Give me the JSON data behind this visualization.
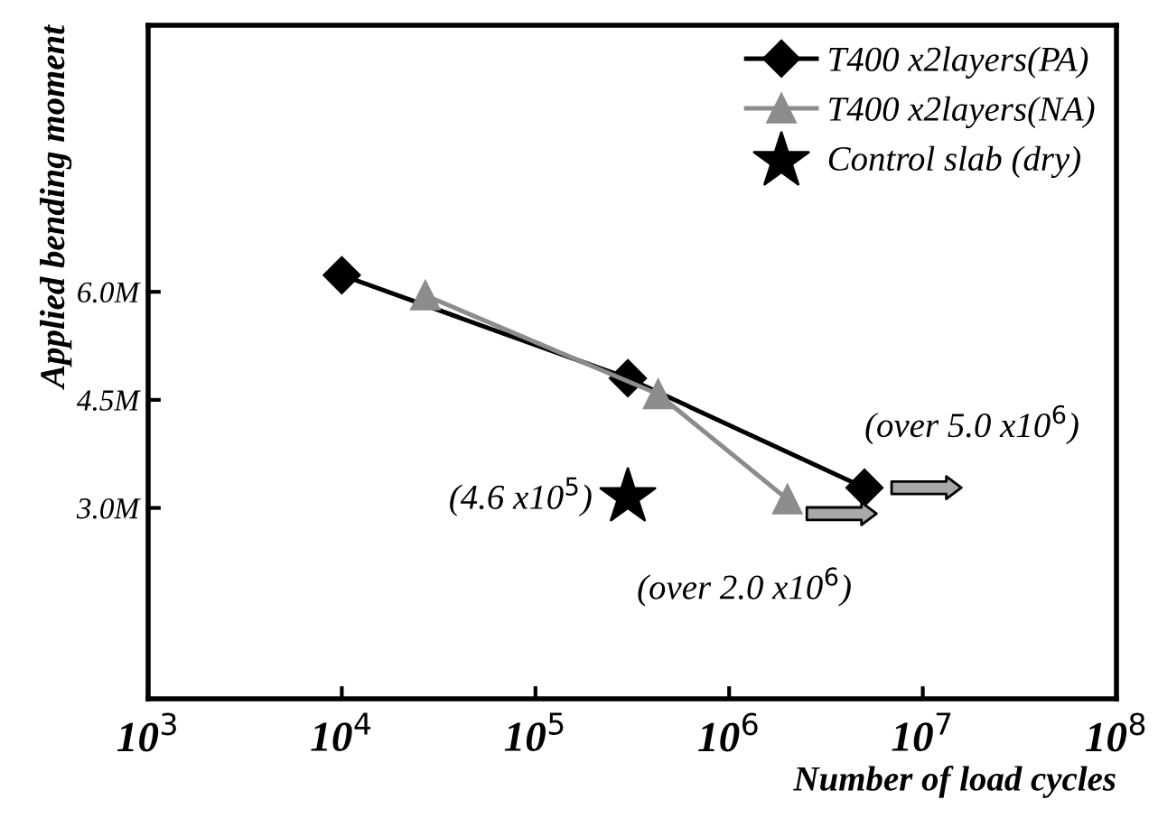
{
  "chart_data": {
    "type": "line",
    "xlabel": "Number of load cycles",
    "ylabel": "Applied bending moment",
    "series": [
      {
        "name": "T400 x2layers(PA)",
        "color": "#000000",
        "marker": "diamond",
        "x": [
          10000,
          300000,
          5000000
        ],
        "values": [
          6.23,
          4.8,
          3.28
        ]
      },
      {
        "name": "T400 x2layers(NA)",
        "color": "#8c8c8c",
        "marker": "triangle",
        "x": [
          27000,
          430000,
          2000000
        ],
        "values": [
          5.95,
          4.58,
          3.12
        ]
      },
      {
        "name": "Control slab (dry)",
        "type": "scatter",
        "color": "#000000",
        "marker": "star",
        "x": [
          300000
        ],
        "values": [
          3.15
        ]
      }
    ],
    "annotations": [
      {
        "text": "(over 5.0 x10$^{6}$)",
        "x": 5000000,
        "y": 3.28
      },
      {
        "text": "(over 2.0 x10$^{6}$)",
        "x": 2000000,
        "y": 3.12
      },
      {
        "text": "(4.6 x10$^{5}$)",
        "x": 300000,
        "y": 3.15
      }
    ],
    "log": "x",
    "xlim": [
      1000,
      100000000
    ],
    "xticks": [
      {
        "value": 1000,
        "label": "10$^{3}$"
      },
      {
        "value": 10000,
        "label": "10$^{4}$"
      },
      {
        "value": 100000,
        "label": "10$^{5}$"
      },
      {
        "value": 1000000,
        "label": "10$^{6}$"
      },
      {
        "value": 10000000,
        "label": "10$^{7}$"
      },
      {
        "value": 100000000,
        "label": "10$^{8}$"
      }
    ],
    "ylim": [
      0.35,
      9.7
    ],
    "yticks": [
      {
        "value": 3.0,
        "label": "3.0M"
      },
      {
        "value": 4.5,
        "label": "4.5M"
      },
      {
        "value": 6.0,
        "label": "6.0M"
      }
    ],
    "legend": "top right",
    "grid": false
  }
}
